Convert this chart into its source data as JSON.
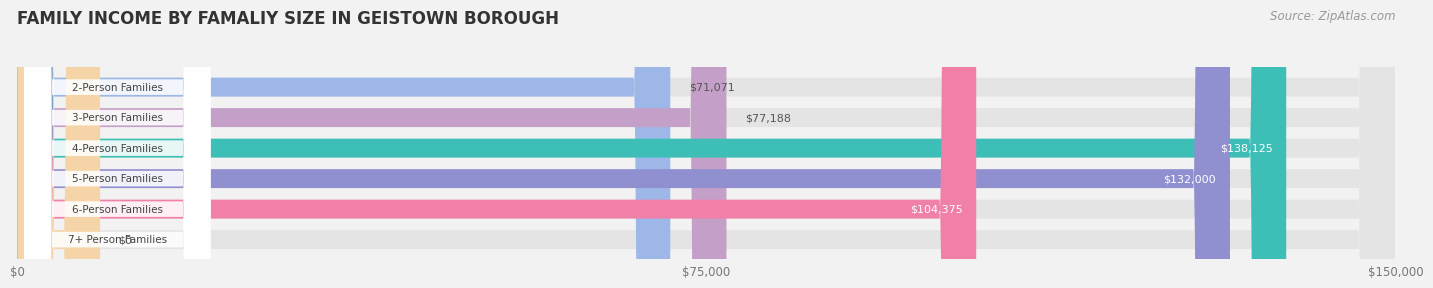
{
  "title": "FAMILY INCOME BY FAMALIY SIZE IN GEISTOWN BOROUGH",
  "source": "Source: ZipAtlas.com",
  "categories": [
    "2-Person Families",
    "3-Person Families",
    "4-Person Families",
    "5-Person Families",
    "6-Person Families",
    "7+ Person Families"
  ],
  "values": [
    71071,
    77188,
    138125,
    132000,
    104375,
    0
  ],
  "bar_colors": [
    "#9db8e8",
    "#c4a0c8",
    "#3dbfb8",
    "#9090d0",
    "#f080a8",
    "#f5d5a8"
  ],
  "value_labels": [
    "$71,071",
    "$77,188",
    "$138,125",
    "$132,000",
    "$104,375",
    "$0"
  ],
  "label_inside": [
    false,
    false,
    true,
    true,
    true,
    false
  ],
  "small_bar_val": 9000,
  "xlim": [
    0,
    150000
  ],
  "xticks": [
    0,
    75000,
    150000
  ],
  "xtick_labels": [
    "$0",
    "$75,000",
    "$150,000"
  ],
  "title_fontsize": 12,
  "source_fontsize": 8.5,
  "bar_height": 0.62,
  "background_color": "#f2f2f2",
  "bar_background_color": "#e4e4e4"
}
